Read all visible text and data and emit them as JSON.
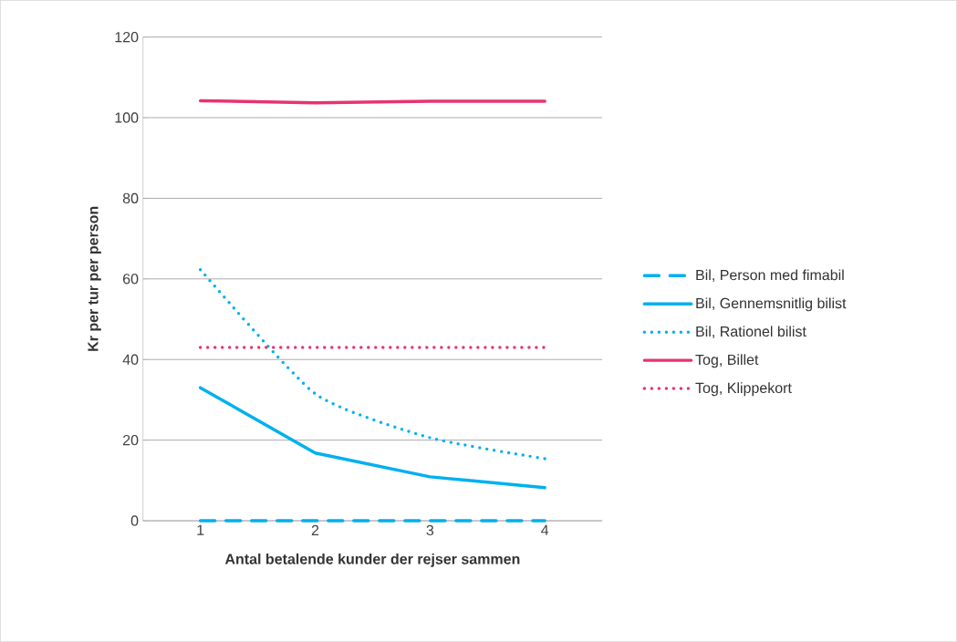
{
  "chart_data": {
    "type": "line",
    "xlabel": "Antal betalende kunder der rejser sammen",
    "ylabel": "Kr per tur per person",
    "categories": [
      "1",
      "2",
      "3",
      "4"
    ],
    "series": [
      {
        "name": "Bil, Person med fimabil",
        "color": "#00b0f0",
        "line_style": "dashed",
        "values": [
          0,
          0,
          0,
          0
        ]
      },
      {
        "name": "Bil, Gennemsnitlig bilist",
        "color": "#00b0f0",
        "line_style": "solid",
        "values": [
          33,
          16.8,
          10.9,
          8.2
        ]
      },
      {
        "name": "Bil, Rationel bilist",
        "color": "#00b0f0",
        "line_style": "dotted",
        "values": [
          62.3,
          31.5,
          20.6,
          15.4
        ]
      },
      {
        "name": "Tog, Billet",
        "color": "#e8336f",
        "line_style": "solid",
        "values": [
          104.2,
          103.7,
          104.1,
          104.1
        ]
      },
      {
        "name": "Tog, Klippekort",
        "color": "#e8336f",
        "line_style": "dotted",
        "values": [
          43,
          43,
          43,
          43
        ]
      }
    ],
    "ylim": [
      0,
      120
    ],
    "yticks": [
      0,
      20,
      40,
      60,
      80,
      100,
      120
    ],
    "grid": "y",
    "legend": "right",
    "marker": "none"
  }
}
